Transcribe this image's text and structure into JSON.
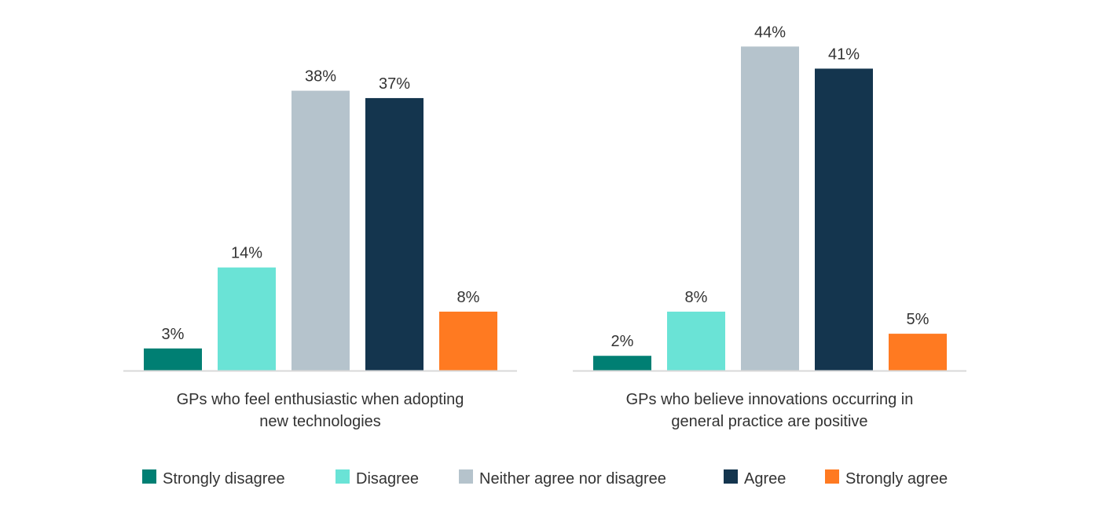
{
  "chart_data": [
    {
      "type": "bar",
      "title": "",
      "xlabel": [
        "GPs who feel enthusiastic when adopting",
        "new technologies"
      ],
      "ylabel": "",
      "ylim": [
        0,
        48
      ],
      "grid": false,
      "categories": [
        "Strongly disagree",
        "Disagree",
        "Neither agree nor disagree",
        "Agree",
        "Strongly agree"
      ],
      "values": [
        3,
        14,
        38,
        37,
        8
      ],
      "labels": [
        "3%",
        "14%",
        "38%",
        "37%",
        "8%"
      ]
    },
    {
      "type": "bar",
      "title": "",
      "xlabel": [
        "GPs who believe innovations occurring in",
        "general practice are positive"
      ],
      "ylabel": "",
      "ylim": [
        0,
        48
      ],
      "grid": false,
      "categories": [
        "Strongly disagree",
        "Disagree",
        "Neither agree nor disagree",
        "Agree",
        "Strongly agree"
      ],
      "values": [
        2,
        8,
        44,
        41,
        5
      ],
      "labels": [
        "2%",
        "8%",
        "44%",
        "41%",
        "5%"
      ]
    }
  ],
  "legend": {
    "placement": "bottom",
    "items": [
      {
        "label": "Strongly disagree",
        "color": "#007f73"
      },
      {
        "label": "Disagree",
        "color": "#6ae3d6"
      },
      {
        "label": "Neither agree nor disagree",
        "color": "#b5c3cc"
      },
      {
        "label": "Agree",
        "color": "#14354e"
      },
      {
        "label": "Strongly agree",
        "color": "#ff7a21"
      }
    ]
  },
  "colors": {
    "text": "#333333",
    "axis": "#d9d9d9"
  }
}
